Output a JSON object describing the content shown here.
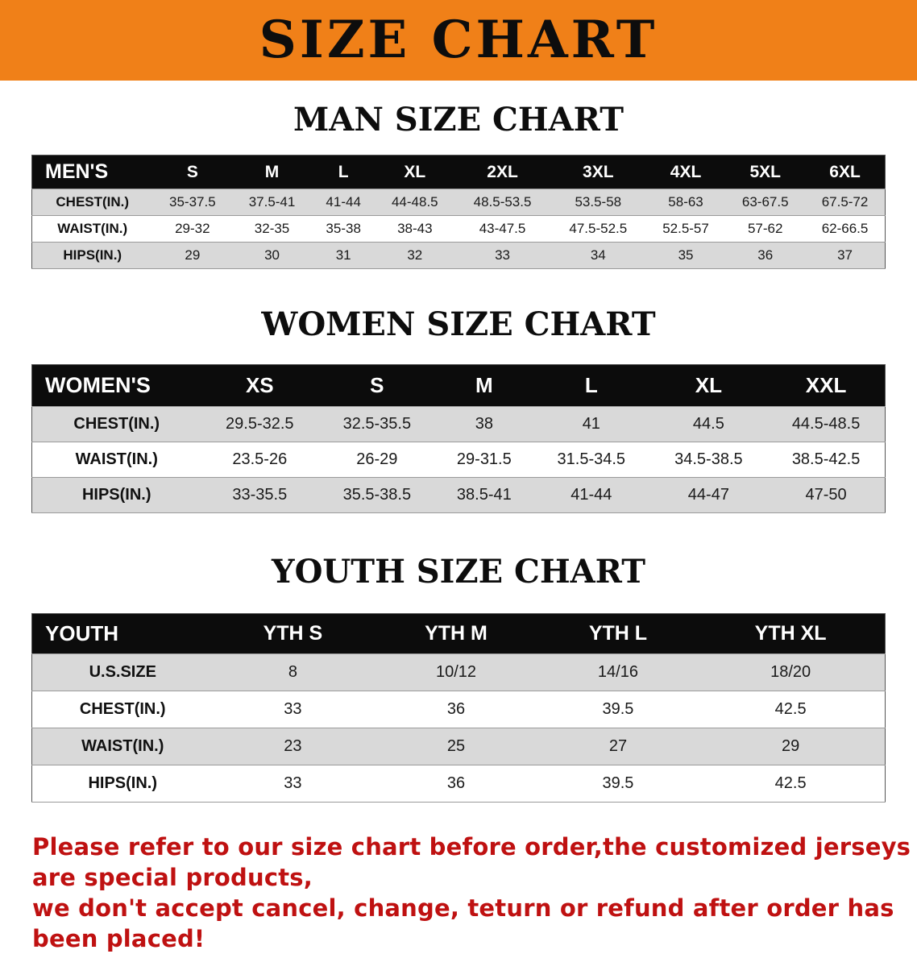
{
  "banner": {
    "title": "SIZE CHART",
    "bg_color": "#f08018"
  },
  "men": {
    "heading": "MAN SIZE CHART",
    "table": {
      "header": [
        "MEN'S",
        "S",
        "M",
        "L",
        "XL",
        "2XL",
        "3XL",
        "4XL",
        "5XL",
        "6XL"
      ],
      "rows": [
        [
          "CHEST(IN.)",
          "35-37.5",
          "37.5-41",
          "41-44",
          "44-48.5",
          "48.5-53.5",
          "53.5-58",
          "58-63",
          "63-67.5",
          "67.5-72"
        ],
        [
          "WAIST(IN.)",
          "29-32",
          "32-35",
          "35-38",
          "38-43",
          "43-47.5",
          "47.5-52.5",
          "52.5-57",
          "57-62",
          "62-66.5"
        ],
        [
          "HIPS(IN.)",
          "29",
          "30",
          "31",
          "32",
          "33",
          "34",
          "35",
          "36",
          "37"
        ]
      ]
    }
  },
  "women": {
    "heading": "WOMEN SIZE CHART",
    "table": {
      "header": [
        "WOMEN'S",
        "XS",
        "S",
        "M",
        "L",
        "XL",
        "XXL"
      ],
      "rows": [
        [
          "CHEST(IN.)",
          "29.5-32.5",
          "32.5-35.5",
          "38",
          "41",
          "44.5",
          "44.5-48.5"
        ],
        [
          "WAIST(IN.)",
          "23.5-26",
          "26-29",
          "29-31.5",
          "31.5-34.5",
          "34.5-38.5",
          "38.5-42.5"
        ],
        [
          "HIPS(IN.)",
          "33-35.5",
          "35.5-38.5",
          "38.5-41",
          "41-44",
          "44-47",
          "47-50"
        ]
      ]
    }
  },
  "youth": {
    "heading": "YOUTH SIZE CHART",
    "table": {
      "header": [
        "YOUTH",
        "YTH S",
        "YTH M",
        "YTH L",
        "YTH XL"
      ],
      "rows": [
        [
          "U.S.SIZE",
          "8",
          "10/12",
          "14/16",
          "18/20"
        ],
        [
          "CHEST(IN.)",
          "33",
          "36",
          "39.5",
          "42.5"
        ],
        [
          "WAIST(IN.)",
          "23",
          "25",
          "27",
          "29"
        ],
        [
          "HIPS(IN.)",
          "33",
          "36",
          "39.5",
          "42.5"
        ]
      ]
    }
  },
  "footer": {
    "lines": [
      "Please refer to our size chart before order,the customized jerseys are special products,",
      "we don't accept cancel, change, teturn or refund after order has been placed!"
    ],
    "text_color": "#bf1111"
  }
}
